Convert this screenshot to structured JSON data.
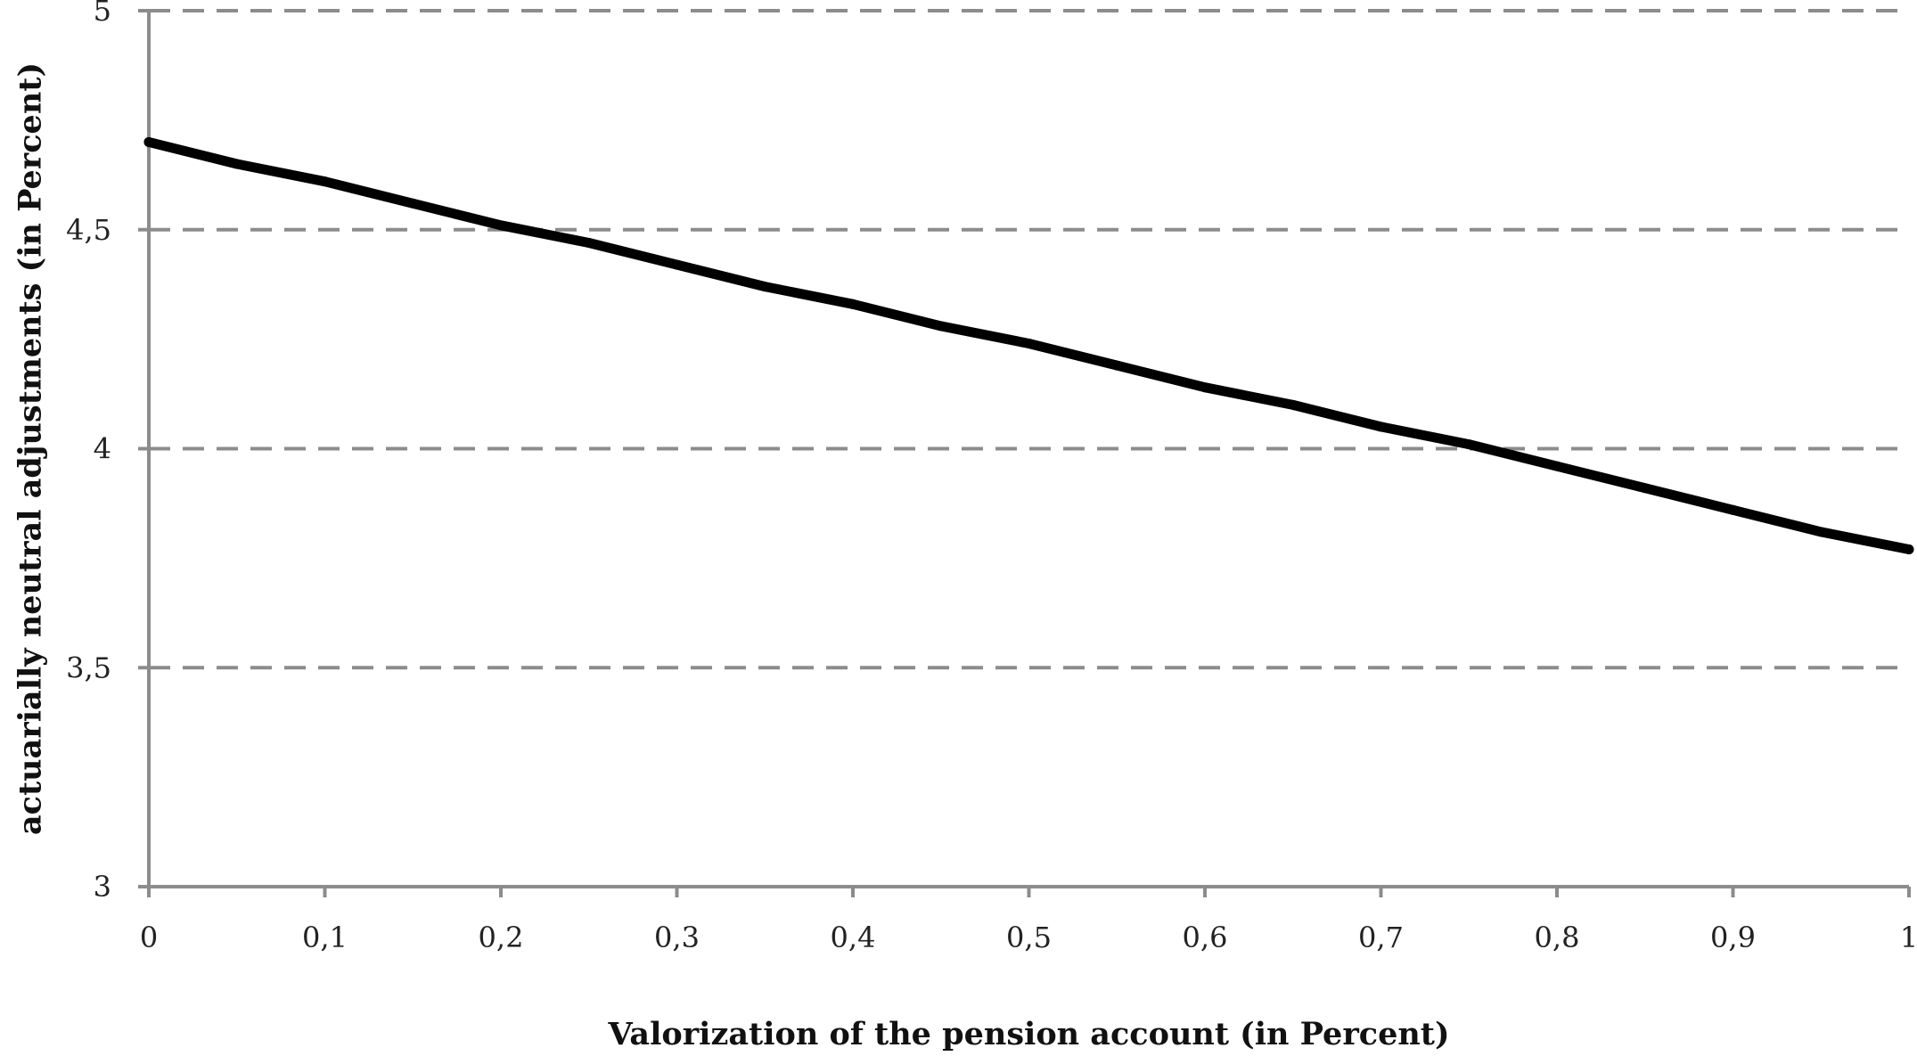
{
  "chart_data": {
    "type": "line",
    "title": "",
    "xlabel": "Valorization of the pension account (in Percent)",
    "ylabel": "actuarially neutral adjustments (in Percent)",
    "xlim": [
      0,
      1
    ],
    "ylim": [
      3,
      5
    ],
    "x_ticks": [
      0,
      0.1,
      0.2,
      0.3,
      0.4,
      0.5,
      0.6,
      0.7,
      0.8,
      0.9,
      1
    ],
    "x_tick_labels": [
      "0",
      "0,1",
      "0,2",
      "0,3",
      "0,4",
      "0,5",
      "0,6",
      "0,7",
      "0,8",
      "0,9",
      "1"
    ],
    "y_ticks": [
      3,
      3.5,
      4,
      4.5,
      5
    ],
    "y_tick_labels": [
      "3",
      "3,5",
      "4",
      "4,5",
      "5"
    ],
    "grid": "horizontal dashed at 3,5 / 4 / 4,5 / 5",
    "legend": "none",
    "colors": {
      "line": "#000000",
      "axis": "#8c8c8c",
      "grid": "#8c8c8c"
    },
    "series": [
      {
        "x": [
          0,
          0.05,
          0.1,
          0.15,
          0.2,
          0.25,
          0.3,
          0.35,
          0.4,
          0.45,
          0.5,
          0.55,
          0.6,
          0.65,
          0.7,
          0.75,
          0.8,
          0.85,
          0.9,
          0.95,
          1
        ],
        "values": [
          4.7,
          4.65,
          4.61,
          4.56,
          4.51,
          4.47,
          4.42,
          4.37,
          4.33,
          4.28,
          4.24,
          4.19,
          4.14,
          4.1,
          4.05,
          4.01,
          3.96,
          3.91,
          3.86,
          3.81,
          3.77
        ]
      }
    ]
  }
}
